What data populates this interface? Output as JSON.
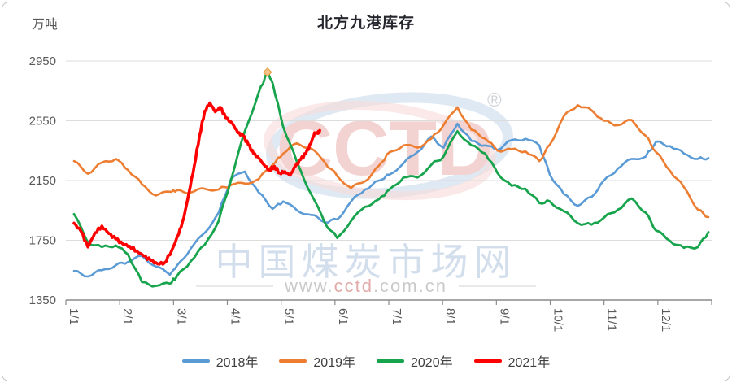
{
  "header": {
    "unit_label": "万吨",
    "title": "北方九港库存"
  },
  "watermark": {
    "logo_text": "CCTD",
    "registered_mark": "®",
    "site_name": "中国煤炭市场网",
    "url_prefix": "www.",
    "url_highlight": "cctd",
    "url_suffix": ".com.cn",
    "logo_red": "#e8a8a4",
    "logo_blue": "#a9c4e2"
  },
  "chart_data": {
    "type": "line",
    "title": "北方九港库存",
    "ylabel": "万吨",
    "ylim": [
      1350,
      2950
    ],
    "yticks": [
      1350,
      1750,
      2150,
      2550,
      2950
    ],
    "x_tick_labels": [
      "1/1",
      "2/1",
      "3/1",
      "4/1",
      "5/1",
      "6/1",
      "7/1",
      "8/1",
      "9/1",
      "10/1",
      "11/1",
      "12/1"
    ],
    "grid": "horizontal",
    "legend_position": "bottom",
    "x_unit": "day-of-year",
    "series": [
      {
        "name": "2018年",
        "color": "#5B9BD5",
        "width": 2.6,
        "x": [
          1,
          9,
          17,
          25,
          32,
          40,
          48,
          56,
          60,
          68,
          76,
          84,
          91,
          99,
          107,
          115,
          121,
          129,
          137,
          145,
          152,
          160,
          168,
          176,
          182,
          190,
          198,
          206,
          213,
          221,
          229,
          237,
          244,
          252,
          260,
          268,
          274,
          282,
          290,
          298,
          305,
          313,
          321,
          329,
          335,
          343,
          351,
          359,
          365
        ],
        "values": [
          1545,
          1508,
          1550,
          1583,
          1605,
          1645,
          1575,
          1520,
          1580,
          1695,
          1800,
          1935,
          2160,
          2210,
          2070,
          1960,
          2010,
          1950,
          1920,
          1870,
          1890,
          2010,
          2090,
          2150,
          2190,
          2265,
          2340,
          2445,
          2370,
          2530,
          2415,
          2385,
          2355,
          2420,
          2430,
          2385,
          2190,
          2060,
          1980,
          2040,
          2150,
          2230,
          2295,
          2310,
          2410,
          2380,
          2330,
          2295,
          2300
        ]
      },
      {
        "name": "2019年",
        "color": "#ED7D31",
        "width": 2.6,
        "x": [
          1,
          9,
          17,
          25,
          32,
          40,
          48,
          56,
          60,
          68,
          76,
          84,
          91,
          99,
          107,
          115,
          121,
          129,
          137,
          145,
          152,
          160,
          168,
          176,
          182,
          190,
          198,
          206,
          213,
          221,
          229,
          237,
          244,
          252,
          260,
          268,
          274,
          282,
          290,
          298,
          305,
          313,
          321,
          329,
          335,
          343,
          351,
          359,
          365
        ],
        "values": [
          2280,
          2195,
          2270,
          2295,
          2220,
          2125,
          2050,
          2075,
          2085,
          2070,
          2095,
          2090,
          2120,
          2130,
          2160,
          2255,
          2330,
          2400,
          2365,
          2270,
          2180,
          2100,
          2145,
          2250,
          2340,
          2385,
          2370,
          2430,
          2520,
          2640,
          2490,
          2430,
          2350,
          2360,
          2345,
          2280,
          2390,
          2580,
          2655,
          2620,
          2550,
          2520,
          2555,
          2450,
          2340,
          2215,
          2105,
          1955,
          1905
        ]
      },
      {
        "name": "2020年",
        "color": "#17A44D",
        "width": 2.8,
        "x": [
          1,
          9,
          17,
          25,
          32,
          40,
          48,
          56,
          60,
          68,
          76,
          84,
          91,
          99,
          107,
          112,
          115,
          121,
          129,
          137,
          145,
          152,
          160,
          168,
          176,
          182,
          190,
          198,
          206,
          213,
          221,
          229,
          237,
          244,
          252,
          260,
          268,
          274,
          282,
          290,
          298,
          305,
          313,
          321,
          329,
          335,
          343,
          351,
          359,
          365
        ],
        "values": [
          1925,
          1735,
          1705,
          1715,
          1655,
          1470,
          1445,
          1460,
          1510,
          1610,
          1720,
          1880,
          2150,
          2480,
          2740,
          2875,
          2800,
          2510,
          2270,
          2060,
          1865,
          1765,
          1880,
          1975,
          2025,
          2090,
          2170,
          2170,
          2255,
          2310,
          2480,
          2385,
          2330,
          2200,
          2115,
          2095,
          2000,
          2010,
          1945,
          1865,
          1855,
          1900,
          1955,
          2030,
          1935,
          1815,
          1745,
          1700,
          1705,
          1805
        ],
        "marker": {
          "day": 112,
          "value": 2875,
          "shape": "diamond",
          "fill": "#F6C28B",
          "stroke": "#E39A3B"
        }
      },
      {
        "name": "2021年",
        "color": "#FE0000",
        "width": 3.6,
        "x": [
          1,
          5,
          9,
          13,
          17,
          21,
          25,
          29,
          33,
          37,
          41,
          45,
          49,
          53,
          57,
          61,
          64,
          67,
          70,
          73,
          76,
          79,
          82,
          85,
          88,
          92,
          95,
          98,
          101,
          104,
          107,
          110,
          113,
          116,
          119,
          122,
          125,
          128,
          131,
          134,
          137,
          139,
          141,
          142
        ],
        "values": [
          1865,
          1810,
          1705,
          1800,
          1845,
          1795,
          1758,
          1725,
          1710,
          1678,
          1645,
          1615,
          1592,
          1600,
          1680,
          1790,
          1900,
          2070,
          2250,
          2450,
          2615,
          2670,
          2610,
          2640,
          2570,
          2530,
          2470,
          2450,
          2390,
          2330,
          2300,
          2255,
          2220,
          2245,
          2200,
          2210,
          2185,
          2245,
          2290,
          2330,
          2400,
          2470,
          2465,
          2485
        ]
      }
    ]
  }
}
